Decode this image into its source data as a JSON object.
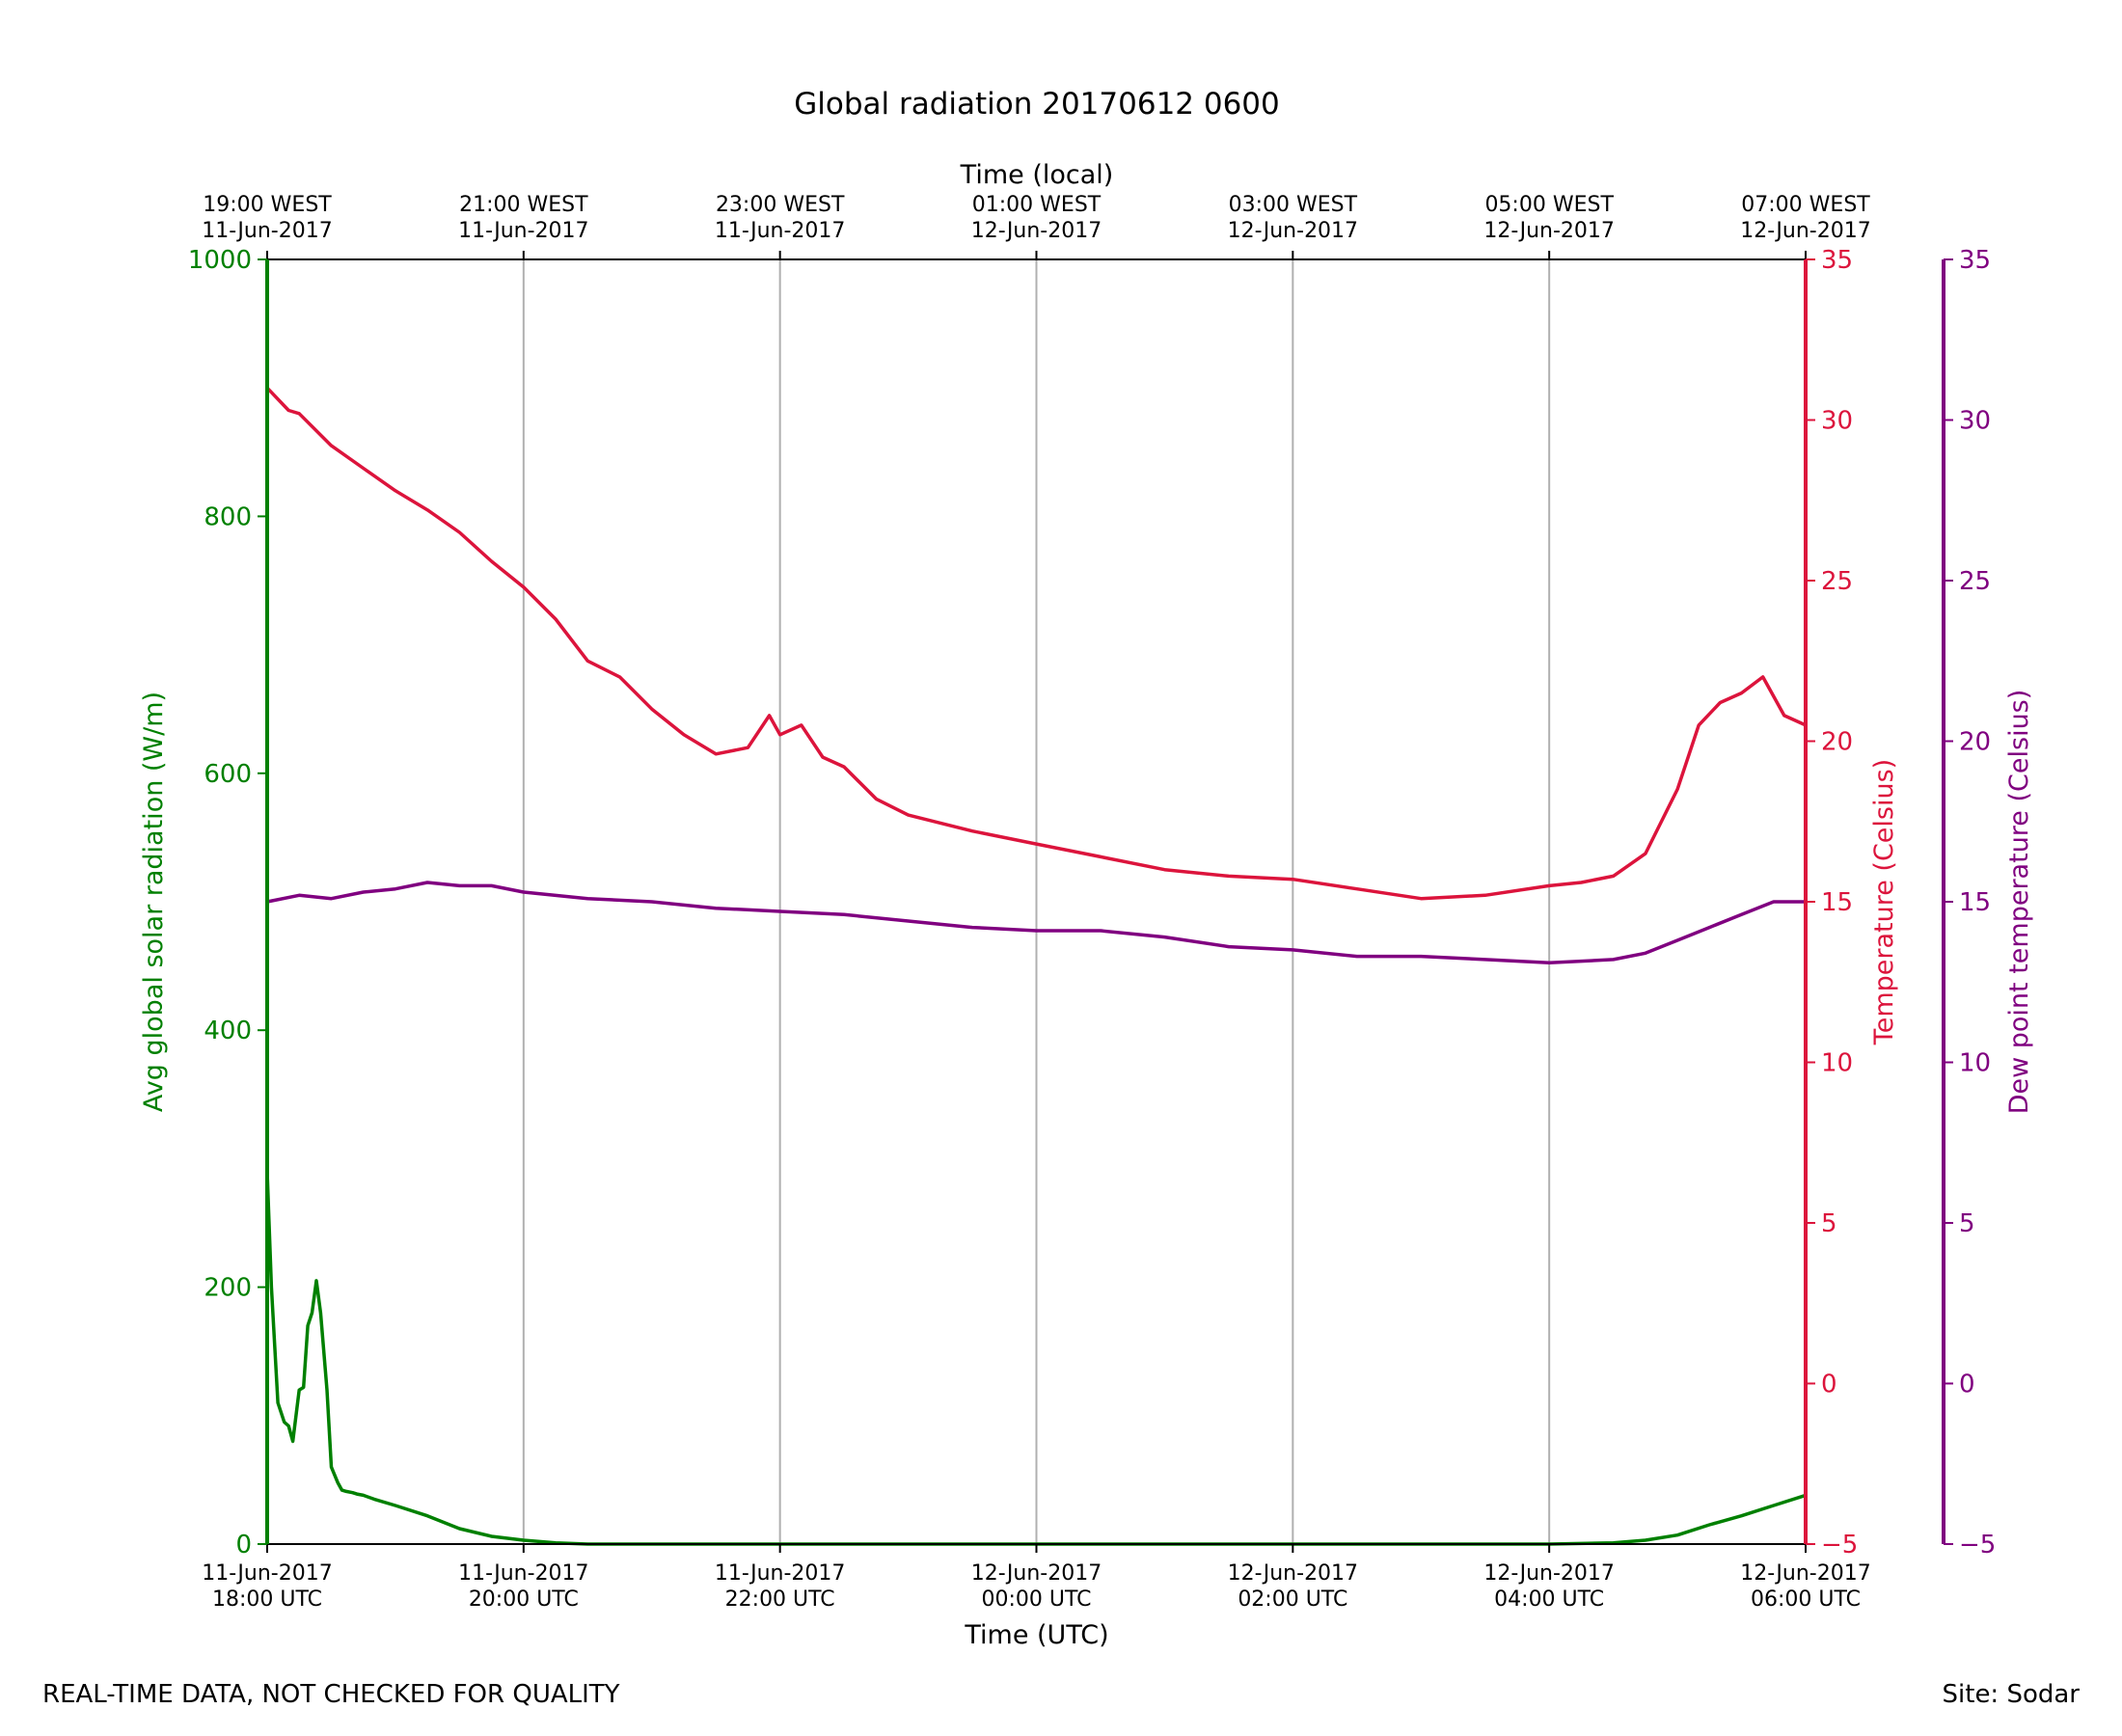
{
  "chart_data": {
    "type": "line",
    "title": "Global radiation 20170612 0600",
    "top_axis_label": "Time (local)",
    "top_ticks": [
      {
        "time": "19:00 WEST",
        "date": "11-Jun-2017"
      },
      {
        "time": "21:00 WEST",
        "date": "11-Jun-2017"
      },
      {
        "time": "23:00 WEST",
        "date": "11-Jun-2017"
      },
      {
        "time": "01:00 WEST",
        "date": "12-Jun-2017"
      },
      {
        "time": "03:00 WEST",
        "date": "12-Jun-2017"
      },
      {
        "time": "05:00 WEST",
        "date": "12-Jun-2017"
      },
      {
        "time": "07:00 WEST",
        "date": "12-Jun-2017"
      }
    ],
    "xlabel": "Time (UTC)",
    "bottom_ticks": [
      {
        "date": "11-Jun-2017",
        "time": "18:00 UTC"
      },
      {
        "date": "11-Jun-2017",
        "time": "20:00 UTC"
      },
      {
        "date": "11-Jun-2017",
        "time": "22:00 UTC"
      },
      {
        "date": "12-Jun-2017",
        "time": "00:00 UTC"
      },
      {
        "date": "12-Jun-2017",
        "time": "02:00 UTC"
      },
      {
        "date": "12-Jun-2017",
        "time": "04:00 UTC"
      },
      {
        "date": "12-Jun-2017",
        "time": "06:00 UTC"
      }
    ],
    "xlim": [
      "2017-06-11 18:00",
      "2017-06-12 06:00"
    ],
    "grid": "vertical",
    "axes": {
      "radiation": {
        "label": "Avg global solar radiation (W/m)",
        "ylim": [
          0,
          1000
        ],
        "ticks": [
          0,
          200,
          400,
          600,
          800,
          1000
        ],
        "color": "#008000"
      },
      "temperature": {
        "label": "Temperature (Celsius)",
        "ylim": [
          -5,
          35
        ],
        "ticks": [
          -5,
          0,
          5,
          10,
          15,
          20,
          25,
          30,
          35
        ],
        "color": "#dc143c"
      },
      "dewpoint": {
        "label": "Dew point temperature (Celsius)",
        "ylim": [
          -5,
          35
        ],
        "ticks": [
          -5,
          0,
          5,
          10,
          15,
          20,
          25,
          30,
          35
        ],
        "color": "#800080"
      }
    },
    "series": [
      {
        "axis": "radiation",
        "color": "#008000",
        "x": [
          "2017-06-11 18:00",
          "2017-06-11 18:02",
          "2017-06-11 18:05",
          "2017-06-11 18:08",
          "2017-06-11 18:10",
          "2017-06-11 18:12",
          "2017-06-11 18:15",
          "2017-06-11 18:17",
          "2017-06-11 18:19",
          "2017-06-11 18:21",
          "2017-06-11 18:23",
          "2017-06-11 18:25",
          "2017-06-11 18:28",
          "2017-06-11 18:30",
          "2017-06-11 18:33",
          "2017-06-11 18:35",
          "2017-06-11 18:37",
          "2017-06-11 18:40",
          "2017-06-11 18:42",
          "2017-06-11 18:45",
          "2017-06-11 18:50",
          "2017-06-11 19:00",
          "2017-06-11 19:15",
          "2017-06-11 19:30",
          "2017-06-11 19:45",
          "2017-06-11 20:00",
          "2017-06-11 20:15",
          "2017-06-11 20:30",
          "2017-06-11 21:00",
          "2017-06-11 22:00",
          "2017-06-12 00:00",
          "2017-06-12 02:00",
          "2017-06-12 04:00",
          "2017-06-12 04:30",
          "2017-06-12 04:45",
          "2017-06-12 05:00",
          "2017-06-12 05:15",
          "2017-06-12 05:30",
          "2017-06-12 05:45",
          "2017-06-12 06:00"
        ],
        "values": [
          290,
          200,
          110,
          95,
          92,
          80,
          120,
          122,
          170,
          180,
          205,
          180,
          120,
          60,
          48,
          42,
          41,
          40,
          39,
          38,
          35,
          30,
          22,
          12,
          6,
          3,
          1,
          0,
          0,
          0,
          0,
          0,
          0,
          1,
          3,
          7,
          15,
          22,
          30,
          38
        ]
      },
      {
        "axis": "temperature",
        "color": "#dc143c",
        "x": [
          "2017-06-11 18:00",
          "2017-06-11 18:10",
          "2017-06-11 18:15",
          "2017-06-11 18:30",
          "2017-06-11 18:45",
          "2017-06-11 19:00",
          "2017-06-11 19:15",
          "2017-06-11 19:30",
          "2017-06-11 19:45",
          "2017-06-11 20:00",
          "2017-06-11 20:15",
          "2017-06-11 20:30",
          "2017-06-11 20:45",
          "2017-06-11 21:00",
          "2017-06-11 21:15",
          "2017-06-11 21:30",
          "2017-06-11 21:45",
          "2017-06-11 21:55",
          "2017-06-11 22:00",
          "2017-06-11 22:10",
          "2017-06-11 22:20",
          "2017-06-11 22:30",
          "2017-06-11 22:45",
          "2017-06-11 23:00",
          "2017-06-11 23:30",
          "2017-06-12 00:00",
          "2017-06-12 00:30",
          "2017-06-12 01:00",
          "2017-06-12 01:30",
          "2017-06-12 02:00",
          "2017-06-12 02:30",
          "2017-06-12 03:00",
          "2017-06-12 03:30",
          "2017-06-12 04:00",
          "2017-06-12 04:15",
          "2017-06-12 04:30",
          "2017-06-12 04:45",
          "2017-06-12 05:00",
          "2017-06-12 05:10",
          "2017-06-12 05:20",
          "2017-06-12 05:30",
          "2017-06-12 05:40",
          "2017-06-12 05:50",
          "2017-06-12 06:00"
        ],
        "values": [
          31,
          30.3,
          30.2,
          29.2,
          28.5,
          27.8,
          27.2,
          26.5,
          25.6,
          24.8,
          23.8,
          22.5,
          22,
          21,
          20.2,
          19.6,
          19.8,
          20.8,
          20.2,
          20.5,
          19.5,
          19.2,
          18.2,
          17.7,
          17.2,
          16.8,
          16.4,
          16,
          15.8,
          15.7,
          15.4,
          15.1,
          15.2,
          15.5,
          15.6,
          15.8,
          16.5,
          18.5,
          20.5,
          21.2,
          21.5,
          22,
          20.8,
          20.5
        ]
      },
      {
        "axis": "dewpoint",
        "color": "#800080",
        "x": [
          "2017-06-11 18:00",
          "2017-06-11 18:15",
          "2017-06-11 18:30",
          "2017-06-11 18:45",
          "2017-06-11 19:00",
          "2017-06-11 19:15",
          "2017-06-11 19:30",
          "2017-06-11 19:45",
          "2017-06-11 20:00",
          "2017-06-11 20:30",
          "2017-06-11 21:00",
          "2017-06-11 21:30",
          "2017-06-11 22:00",
          "2017-06-11 22:30",
          "2017-06-11 23:00",
          "2017-06-11 23:30",
          "2017-06-12 00:00",
          "2017-06-12 00:30",
          "2017-06-12 01:00",
          "2017-06-12 01:30",
          "2017-06-12 02:00",
          "2017-06-12 02:30",
          "2017-06-12 03:00",
          "2017-06-12 03:30",
          "2017-06-12 04:00",
          "2017-06-12 04:30",
          "2017-06-12 04:45",
          "2017-06-12 05:00",
          "2017-06-12 05:15",
          "2017-06-12 05:30",
          "2017-06-12 05:45",
          "2017-06-12 06:00"
        ],
        "values": [
          15,
          15.2,
          15.1,
          15.3,
          15.4,
          15.6,
          15.5,
          15.5,
          15.3,
          15.1,
          15,
          14.8,
          14.7,
          14.6,
          14.4,
          14.2,
          14.1,
          14.1,
          13.9,
          13.6,
          13.5,
          13.3,
          13.3,
          13.2,
          13.1,
          13.2,
          13.4,
          13.8,
          14.2,
          14.6,
          15,
          15
        ]
      }
    ]
  },
  "footer": {
    "left": "REAL-TIME DATA, NOT CHECKED FOR QUALITY",
    "right": "Site: Sodar"
  }
}
